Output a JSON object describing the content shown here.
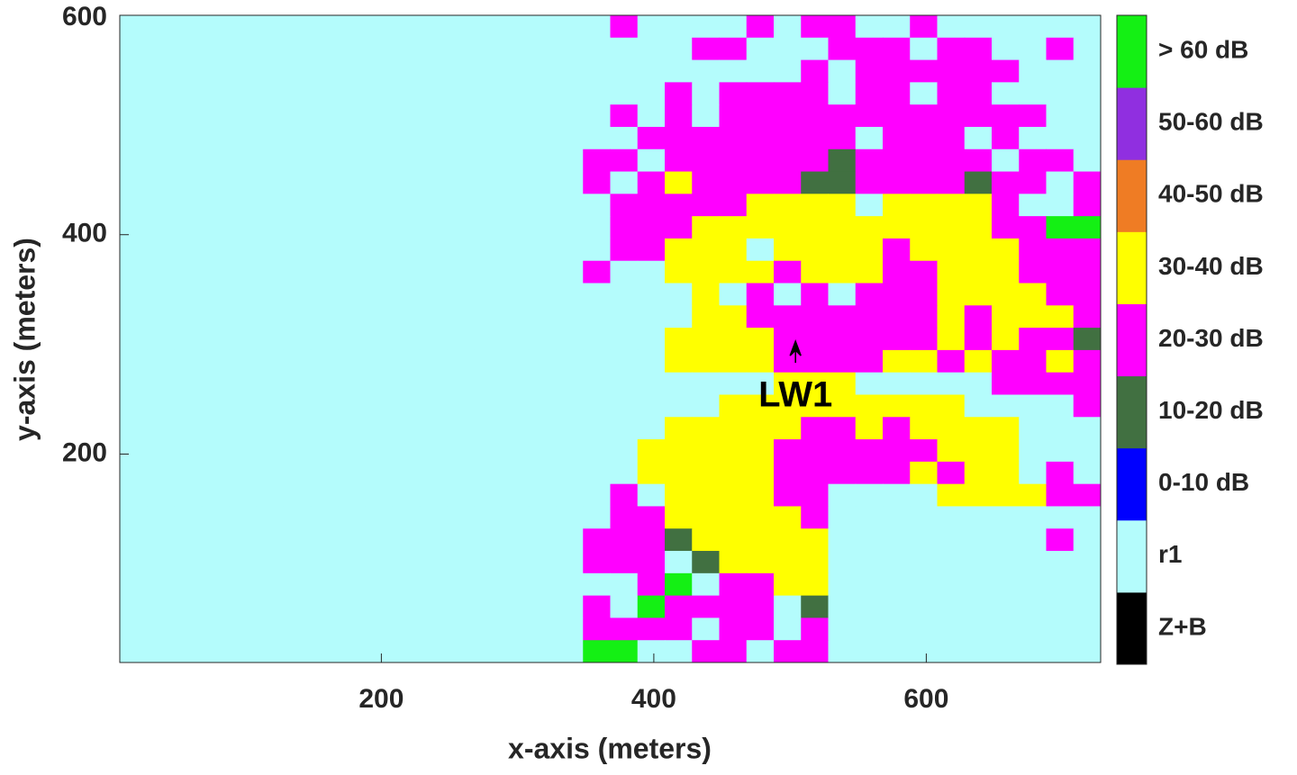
{
  "chart_data": {
    "type": "heatmap",
    "xlabel": "x-axis (meters)",
    "ylabel": "y-axis (meters)",
    "xlim": [
      8,
      728
    ],
    "ylim": [
      10,
      600
    ],
    "xticks": [
      200,
      400,
      600
    ],
    "yticks": [
      200,
      400,
      600
    ],
    "colorbar": {
      "labels": [
        "Z+B",
        "r1",
        "0-10 dB",
        "10-20 dB",
        "20-30 dB",
        "30-40 dB",
        "40-50 dB",
        "50-60 dB",
        "> 60 dB"
      ],
      "colors": [
        "#000000",
        "#b4fcfc",
        "#0000ff",
        "#417041",
        "#ff00ff",
        "#ffff00",
        "#ef7c24",
        "#902fe0",
        "#14f014"
      ]
    },
    "annotation": {
      "text": "LW1",
      "x": 504,
      "y": 293
    },
    "z": [
      [
        1,
        1,
        1,
        1,
        1,
        1,
        1,
        1,
        1,
        1,
        1,
        1,
        1,
        1,
        1,
        1,
        1,
        1,
        4,
        1,
        1,
        1,
        1,
        4,
        1,
        4,
        4,
        1,
        1,
        4,
        1,
        1,
        1,
        1,
        1,
        1
      ],
      [
        1,
        1,
        1,
        1,
        1,
        1,
        1,
        1,
        1,
        1,
        1,
        1,
        1,
        1,
        1,
        1,
        1,
        1,
        1,
        1,
        1,
        4,
        4,
        1,
        1,
        1,
        4,
        4,
        4,
        1,
        4,
        4,
        1,
        1,
        4,
        1
      ],
      [
        1,
        1,
        1,
        1,
        1,
        1,
        1,
        1,
        1,
        1,
        1,
        1,
        1,
        1,
        1,
        1,
        1,
        1,
        1,
        1,
        1,
        1,
        1,
        1,
        1,
        4,
        1,
        4,
        4,
        4,
        4,
        4,
        4,
        1,
        1,
        1
      ],
      [
        1,
        1,
        1,
        1,
        1,
        1,
        1,
        1,
        1,
        1,
        1,
        1,
        1,
        1,
        1,
        1,
        1,
        1,
        1,
        1,
        4,
        1,
        4,
        4,
        4,
        4,
        1,
        4,
        4,
        1,
        4,
        4,
        1,
        1,
        1,
        1
      ],
      [
        1,
        1,
        1,
        1,
        1,
        1,
        1,
        1,
        1,
        1,
        1,
        1,
        1,
        1,
        1,
        1,
        1,
        1,
        4,
        1,
        4,
        1,
        4,
        4,
        4,
        4,
        4,
        4,
        4,
        4,
        4,
        4,
        4,
        4,
        1,
        1
      ],
      [
        1,
        1,
        1,
        1,
        1,
        1,
        1,
        1,
        1,
        1,
        1,
        1,
        1,
        1,
        1,
        1,
        1,
        1,
        1,
        4,
        4,
        4,
        4,
        4,
        4,
        4,
        4,
        1,
        4,
        4,
        4,
        1,
        4,
        1,
        1,
        1
      ],
      [
        1,
        1,
        1,
        1,
        1,
        1,
        1,
        1,
        1,
        1,
        1,
        1,
        1,
        1,
        1,
        1,
        1,
        4,
        4,
        1,
        4,
        4,
        4,
        4,
        4,
        4,
        3,
        4,
        4,
        4,
        4,
        4,
        1,
        4,
        4,
        1
      ],
      [
        1,
        1,
        1,
        1,
        1,
        1,
        1,
        1,
        1,
        1,
        1,
        1,
        1,
        1,
        1,
        1,
        1,
        4,
        1,
        4,
        5,
        4,
        4,
        4,
        4,
        3,
        3,
        4,
        4,
        4,
        4,
        3,
        4,
        4,
        1,
        4
      ],
      [
        1,
        1,
        1,
        1,
        1,
        1,
        1,
        1,
        1,
        1,
        1,
        1,
        1,
        1,
        1,
        1,
        1,
        1,
        4,
        4,
        4,
        4,
        4,
        5,
        5,
        5,
        5,
        1,
        5,
        5,
        5,
        5,
        4,
        1,
        1,
        4
      ],
      [
        1,
        1,
        1,
        1,
        1,
        1,
        1,
        1,
        1,
        1,
        1,
        1,
        1,
        1,
        1,
        1,
        1,
        1,
        4,
        4,
        4,
        5,
        5,
        5,
        5,
        5,
        5,
        5,
        5,
        5,
        5,
        5,
        4,
        4,
        8,
        8
      ],
      [
        1,
        1,
        1,
        1,
        1,
        1,
        1,
        1,
        1,
        1,
        1,
        1,
        1,
        1,
        1,
        1,
        1,
        1,
        4,
        4,
        5,
        5,
        5,
        1,
        5,
        5,
        5,
        5,
        4,
        5,
        5,
        5,
        5,
        4,
        4,
        4
      ],
      [
        1,
        1,
        1,
        1,
        1,
        1,
        1,
        1,
        1,
        1,
        1,
        1,
        1,
        1,
        1,
        1,
        1,
        4,
        1,
        1,
        5,
        5,
        5,
        5,
        4,
        5,
        5,
        5,
        4,
        4,
        5,
        5,
        5,
        4,
        4,
        4
      ],
      [
        1,
        1,
        1,
        1,
        1,
        1,
        1,
        1,
        1,
        1,
        1,
        1,
        1,
        1,
        1,
        1,
        1,
        1,
        1,
        1,
        1,
        5,
        1,
        4,
        1,
        4,
        1,
        4,
        4,
        4,
        5,
        5,
        5,
        5,
        4,
        4
      ],
      [
        1,
        1,
        1,
        1,
        1,
        1,
        1,
        1,
        1,
        1,
        1,
        1,
        1,
        1,
        1,
        1,
        1,
        1,
        1,
        1,
        1,
        5,
        5,
        4,
        4,
        4,
        4,
        4,
        4,
        4,
        5,
        4,
        5,
        5,
        5,
        4
      ],
      [
        1,
        1,
        1,
        1,
        1,
        1,
        1,
        1,
        1,
        1,
        1,
        1,
        1,
        1,
        1,
        1,
        1,
        1,
        1,
        1,
        5,
        5,
        5,
        5,
        4,
        4,
        4,
        4,
        4,
        4,
        5,
        4,
        5,
        4,
        4,
        3
      ],
      [
        1,
        1,
        1,
        1,
        1,
        1,
        1,
        1,
        1,
        1,
        1,
        1,
        1,
        1,
        1,
        1,
        1,
        1,
        1,
        1,
        5,
        5,
        5,
        5,
        4,
        4,
        4,
        4,
        5,
        5,
        4,
        5,
        4,
        4,
        5,
        4
      ],
      [
        1,
        1,
        1,
        1,
        1,
        1,
        1,
        1,
        1,
        1,
        1,
        1,
        1,
        1,
        1,
        1,
        1,
        1,
        1,
        1,
        1,
        1,
        1,
        1,
        5,
        5,
        5,
        1,
        1,
        1,
        1,
        1,
        4,
        4,
        4,
        4
      ],
      [
        1,
        1,
        1,
        1,
        1,
        1,
        1,
        1,
        1,
        1,
        1,
        1,
        1,
        1,
        1,
        1,
        1,
        1,
        1,
        1,
        1,
        1,
        5,
        5,
        5,
        5,
        5,
        5,
        5,
        5,
        5,
        1,
        1,
        1,
        1,
        4
      ],
      [
        1,
        1,
        1,
        1,
        1,
        1,
        1,
        1,
        1,
        1,
        1,
        1,
        1,
        1,
        1,
        1,
        1,
        1,
        1,
        1,
        5,
        5,
        5,
        5,
        5,
        4,
        4,
        5,
        4,
        5,
        5,
        5,
        5,
        1,
        1,
        1
      ],
      [
        1,
        1,
        1,
        1,
        1,
        1,
        1,
        1,
        1,
        1,
        1,
        1,
        1,
        1,
        1,
        1,
        1,
        1,
        1,
        5,
        5,
        5,
        5,
        5,
        4,
        4,
        4,
        4,
        4,
        4,
        5,
        5,
        5,
        1,
        1,
        1
      ],
      [
        1,
        1,
        1,
        1,
        1,
        1,
        1,
        1,
        1,
        1,
        1,
        1,
        1,
        1,
        1,
        1,
        1,
        1,
        1,
        5,
        5,
        5,
        5,
        5,
        4,
        4,
        4,
        4,
        4,
        5,
        4,
        5,
        5,
        1,
        4,
        1
      ],
      [
        1,
        1,
        1,
        1,
        1,
        1,
        1,
        1,
        1,
        1,
        1,
        1,
        1,
        1,
        1,
        1,
        1,
        1,
        4,
        1,
        5,
        5,
        5,
        5,
        4,
        4,
        1,
        1,
        1,
        1,
        5,
        5,
        5,
        5,
        4,
        4
      ],
      [
        1,
        1,
        1,
        1,
        1,
        1,
        1,
        1,
        1,
        1,
        1,
        1,
        1,
        1,
        1,
        1,
        1,
        1,
        4,
        4,
        5,
        5,
        5,
        5,
        5,
        4,
        1,
        1,
        1,
        1,
        1,
        1,
        1,
        1,
        1,
        1
      ],
      [
        1,
        1,
        1,
        1,
        1,
        1,
        1,
        1,
        1,
        1,
        1,
        1,
        1,
        1,
        1,
        1,
        1,
        4,
        4,
        4,
        3,
        5,
        5,
        5,
        5,
        5,
        1,
        1,
        1,
        1,
        1,
        1,
        1,
        1,
        4,
        1
      ],
      [
        1,
        1,
        1,
        1,
        1,
        1,
        1,
        1,
        1,
        1,
        1,
        1,
        1,
        1,
        1,
        1,
        1,
        4,
        4,
        4,
        1,
        3,
        5,
        5,
        5,
        5,
        1,
        1,
        1,
        1,
        1,
        1,
        1,
        1,
        1,
        1
      ],
      [
        1,
        1,
        1,
        1,
        1,
        1,
        1,
        1,
        1,
        1,
        1,
        1,
        1,
        1,
        1,
        1,
        1,
        1,
        1,
        4,
        8,
        1,
        4,
        4,
        5,
        5,
        1,
        1,
        1,
        1,
        1,
        1,
        1,
        1,
        1,
        1
      ],
      [
        1,
        1,
        1,
        1,
        1,
        1,
        1,
        1,
        1,
        1,
        1,
        1,
        1,
        1,
        1,
        1,
        1,
        4,
        1,
        8,
        4,
        4,
        4,
        4,
        1,
        3,
        1,
        1,
        1,
        1,
        1,
        1,
        1,
        1,
        1,
        1
      ],
      [
        1,
        1,
        1,
        1,
        1,
        1,
        1,
        1,
        1,
        1,
        1,
        1,
        1,
        1,
        1,
        1,
        1,
        4,
        4,
        4,
        4,
        1,
        4,
        4,
        1,
        4,
        1,
        1,
        1,
        1,
        1,
        1,
        1,
        1,
        1,
        1
      ],
      [
        1,
        1,
        1,
        1,
        1,
        1,
        1,
        1,
        1,
        1,
        1,
        1,
        1,
        1,
        1,
        1,
        1,
        8,
        8,
        1,
        1,
        4,
        4,
        1,
        4,
        4,
        1,
        1,
        1,
        1,
        1,
        1,
        1,
        1,
        1,
        1
      ]
    ]
  }
}
